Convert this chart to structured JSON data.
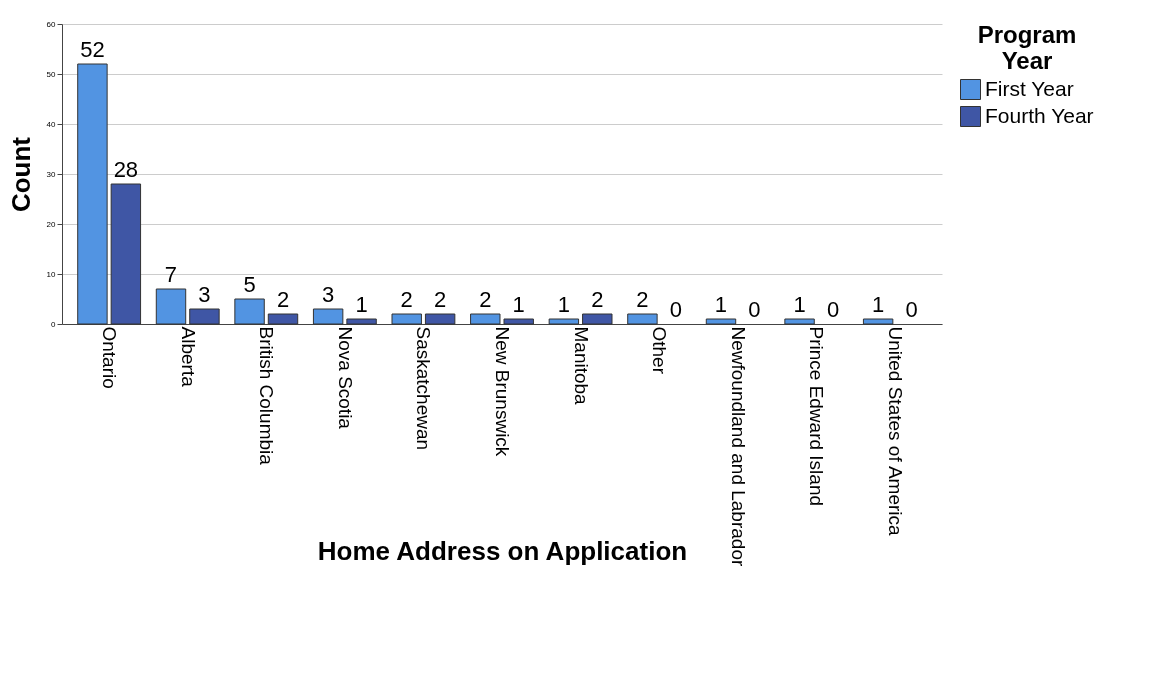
{
  "chart_data": {
    "type": "bar",
    "xlabel": "Home Address on Application",
    "ylabel": "Count",
    "legend_title": "Program Year",
    "categories": [
      "Ontario",
      "Alberta",
      "British Columbia",
      "Nova Scotia",
      "Saskatchewan",
      "New Brunswick",
      "Manitoba",
      "Other",
      "Newfoundland and Labrador",
      "Prince Edward Island",
      "United States of America"
    ],
    "series": [
      {
        "name": "First Year",
        "color": "#5294e2",
        "values": [
          52,
          7,
          5,
          3,
          2,
          2,
          1,
          2,
          1,
          1,
          1
        ]
      },
      {
        "name": "Fourth Year",
        "color": "#3f56a5",
        "values": [
          28,
          3,
          2,
          1,
          2,
          1,
          2,
          0,
          0,
          0,
          0
        ]
      }
    ],
    "ylim": [
      0,
      60
    ],
    "yticks": [
      0,
      10,
      20,
      30,
      40,
      50,
      60
    ],
    "grid": "y",
    "legend": "top right",
    "data_labels": true
  }
}
